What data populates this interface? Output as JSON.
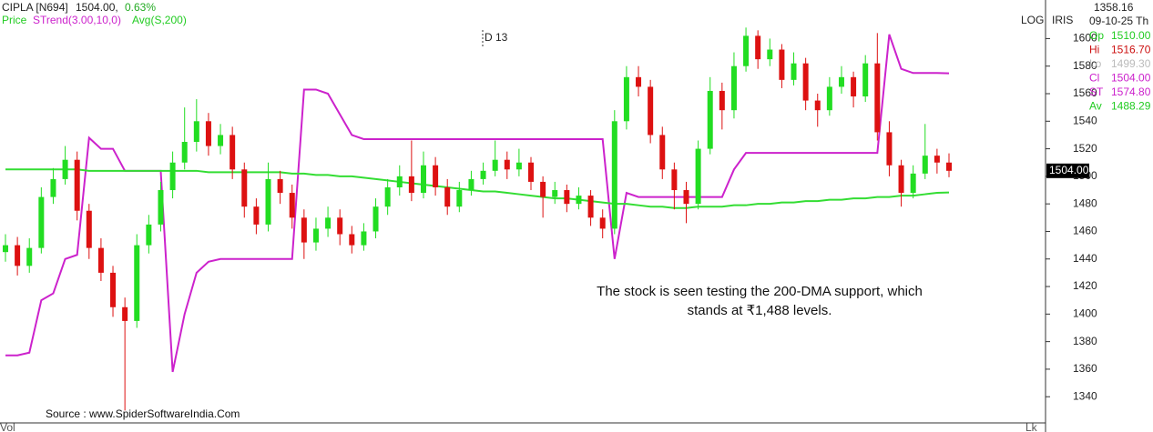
{
  "chart_data": {
    "type": "candlestick",
    "header": {
      "symbol": "CIPLA [N694]",
      "last": "1504.00,",
      "change": "0.63%",
      "price_label": "Price"
    },
    "marker": "D 13",
    "scale_flags": [
      "LOG",
      "IRIS"
    ],
    "panel": {
      "cursor": "1358.16",
      "date": "09-10-25 Th",
      "rows": [
        {
          "label": "Op",
          "text": "1510.00",
          "color": "#22cc22"
        },
        {
          "label": "Hi",
          "text": "1516.70",
          "color": "#cc1111"
        },
        {
          "label": "Lo",
          "text": "1499.30",
          "color": "#bbbbbb"
        },
        {
          "label": "Cl",
          "text": "1504.00",
          "color": "#cc22cc"
        },
        {
          "label": "ST",
          "text": "1574.80",
          "color": "#cc22cc"
        },
        {
          "label": "Av",
          "text": "1488.29",
          "color": "#22cc22"
        }
      ]
    },
    "last_tag": {
      "value": 1504,
      "label": "1504.00"
    },
    "annotation": [
      "The stock is seen testing the 200-DMA support, which",
      "stands at ₹1,488 levels."
    ],
    "source": "Source : www.SpiderSoftwareIndia.Com",
    "bottom_left": "Vol",
    "bottom_right": "Lk",
    "up_color": "#22dd22",
    "down_color": "#dd1111",
    "ylim": [
      1321,
      1628
    ],
    "yticks": [
      1340,
      1360,
      1380,
      1400,
      1420,
      1440,
      1460,
      1480,
      1500,
      1520,
      1540,
      1560,
      1580,
      1600
    ],
    "open": [
      1445,
      1450,
      1435,
      1448,
      1485,
      1498,
      1512,
      1475,
      1448,
      1430,
      1405,
      1395,
      1450,
      1465,
      1490,
      1510,
      1525,
      1540,
      1522,
      1530,
      1505,
      1478,
      1465,
      1498,
      1488,
      1470,
      1452,
      1462,
      1470,
      1458,
      1450,
      1460,
      1478,
      1492,
      1500,
      1488,
      1508,
      1492,
      1478,
      1490,
      1498,
      1504,
      1512,
      1505,
      1510,
      1496,
      1485,
      1490,
      1480,
      1486,
      1470,
      1462,
      1540,
      1572,
      1565,
      1530,
      1505,
      1490,
      1480,
      1520,
      1562,
      1548,
      1580,
      1602,
      1585,
      1592,
      1570,
      1582,
      1555,
      1548,
      1565,
      1572,
      1558,
      1582,
      1532,
      1508,
      1488,
      1502,
      1515,
      1510
    ],
    "high": [
      1458,
      1456,
      1455,
      1492,
      1506,
      1522,
      1518,
      1480,
      1455,
      1435,
      1412,
      1458,
      1472,
      1496,
      1518,
      1550,
      1556,
      1546,
      1538,
      1536,
      1510,
      1484,
      1510,
      1504,
      1494,
      1476,
      1470,
      1478,
      1476,
      1464,
      1466,
      1484,
      1498,
      1508,
      1526,
      1518,
      1514,
      1498,
      1496,
      1504,
      1510,
      1526,
      1518,
      1520,
      1514,
      1500,
      1496,
      1494,
      1492,
      1490,
      1476,
      1548,
      1580,
      1580,
      1570,
      1536,
      1510,
      1496,
      1526,
      1572,
      1568,
      1590,
      1608,
      1606,
      1600,
      1596,
      1590,
      1586,
      1560,
      1572,
      1580,
      1576,
      1588,
      1604,
      1540,
      1512,
      1508,
      1538,
      1520,
      1516.7
    ],
    "low": [
      1438,
      1428,
      1430,
      1444,
      1480,
      1494,
      1468,
      1440,
      1424,
      1398,
      1330,
      1390,
      1444,
      1460,
      1484,
      1505,
      1518,
      1515,
      1516,
      1498,
      1470,
      1458,
      1460,
      1480,
      1462,
      1440,
      1446,
      1456,
      1450,
      1444,
      1446,
      1455,
      1472,
      1486,
      1482,
      1484,
      1486,
      1472,
      1474,
      1486,
      1494,
      1500,
      1498,
      1500,
      1490,
      1470,
      1480,
      1474,
      1476,
      1464,
      1455,
      1458,
      1534,
      1558,
      1524,
      1498,
      1476,
      1466,
      1476,
      1516,
      1534,
      1542,
      1576,
      1578,
      1580,
      1564,
      1566,
      1548,
      1536,
      1544,
      1560,
      1550,
      1554,
      1526,
      1500,
      1478,
      1484,
      1498,
      1502,
      1499.3
    ],
    "close": [
      1450,
      1435,
      1448,
      1485,
      1498,
      1512,
      1475,
      1448,
      1430,
      1405,
      1395,
      1450,
      1465,
      1490,
      1510,
      1525,
      1540,
      1522,
      1530,
      1505,
      1478,
      1465,
      1498,
      1488,
      1470,
      1452,
      1462,
      1470,
      1458,
      1450,
      1460,
      1478,
      1492,
      1500,
      1488,
      1508,
      1492,
      1478,
      1490,
      1498,
      1504,
      1512,
      1505,
      1510,
      1496,
      1485,
      1490,
      1480,
      1486,
      1470,
      1462,
      1540,
      1572,
      1565,
      1530,
      1505,
      1490,
      1480,
      1520,
      1562,
      1548,
      1580,
      1602,
      1585,
      1592,
      1570,
      1582,
      1555,
      1548,
      1565,
      1572,
      1558,
      1582,
      1532,
      1508,
      1488,
      1502,
      1515,
      1510,
      1504
    ],
    "series": [
      {
        "name": "STrend(3.00,10,0)",
        "color": "#cc22cc",
        "values": [
          1370,
          1370,
          1372,
          1410,
          1415,
          1440,
          1443,
          1528,
          1520,
          1520,
          1504,
          1504,
          1504,
          1504,
          1358,
          1400,
          1430,
          1438,
          1440,
          1440,
          1440,
          1440,
          1440,
          1440,
          1440,
          1563,
          1563,
          1560,
          1545,
          1530,
          1527,
          1527,
          1527,
          1527,
          1527,
          1527,
          1527,
          1527,
          1527,
          1527,
          1527,
          1527,
          1527,
          1527,
          1527,
          1527,
          1527,
          1527,
          1527,
          1527,
          1527,
          1440,
          1488,
          1485,
          1485,
          1485,
          1485,
          1485,
          1485,
          1485,
          1485,
          1505,
          1517,
          1517,
          1517,
          1517,
          1517,
          1517,
          1517,
          1517,
          1517,
          1517,
          1517,
          1517,
          1603,
          1578,
          1575,
          1575,
          1575,
          1574.8
        ]
      },
      {
        "name": "Avg(S,200)",
        "color": "#33dd33",
        "values": [
          1505,
          1505,
          1505,
          1505,
          1505,
          1505,
          1505,
          1504,
          1504,
          1504,
          1504,
          1504,
          1504,
          1504,
          1504,
          1504,
          1504,
          1503,
          1503,
          1503,
          1503,
          1503,
          1503,
          1503,
          1502,
          1502,
          1501,
          1501,
          1500,
          1500,
          1499,
          1498,
          1497,
          1496,
          1495,
          1494,
          1493,
          1492,
          1491,
          1490,
          1489,
          1489,
          1488,
          1487,
          1486,
          1485,
          1484,
          1484,
          1483,
          1482,
          1481,
          1480,
          1480,
          1479,
          1478,
          1478,
          1477,
          1477,
          1478,
          1478,
          1478,
          1479,
          1479,
          1480,
          1480,
          1481,
          1481,
          1482,
          1482,
          1483,
          1483,
          1484,
          1484,
          1485,
          1485,
          1486,
          1486,
          1487,
          1488,
          1488.29
        ]
      }
    ]
  }
}
